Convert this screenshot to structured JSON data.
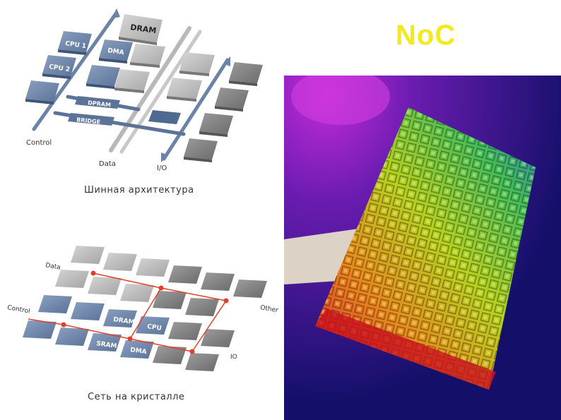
{
  "slide": {
    "title": "NoC"
  },
  "bus_diagram": {
    "caption": "Шинная архитектура",
    "blocks": {
      "dram": "DRAM",
      "cpu1": "CPU 1",
      "cpu2": "CPU 2",
      "dma": "DMA",
      "dpram": "DPRAM",
      "bridge": "BRIDGE"
    },
    "bus_labels": {
      "control": "Control",
      "data": "Data",
      "io": "I/O"
    }
  },
  "noc_diagram": {
    "caption": "Сеть на кристалле",
    "blocks": {
      "dram": "DRAM",
      "cpu": "CPU",
      "sram": "SRAM",
      "dma": "DMA"
    },
    "edge_labels": {
      "data": "Data",
      "control": "Control",
      "other": "Other",
      "io": "IO"
    }
  },
  "colors": {
    "title": "#f2ea1c",
    "blue_block": "#6f86a8",
    "gray_block": "#9c9c9c",
    "route": "#e0402a"
  }
}
